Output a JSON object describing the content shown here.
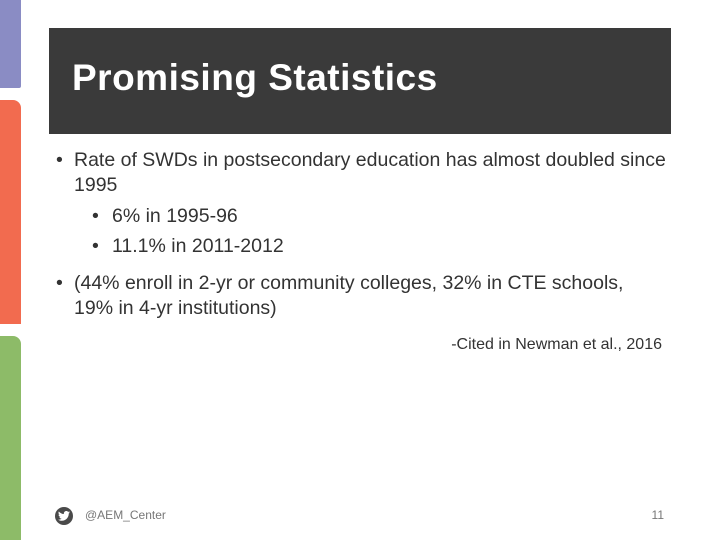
{
  "slide": {
    "title": "Promising Statistics",
    "bullets": [
      {
        "text": "Rate of SWDs in postsecondary education has almost doubled since 1995",
        "sub": [
          "6% in 1995-96",
          "11.1% in 2011-2012"
        ]
      },
      {
        "text": "(44% enroll in 2-yr or community colleges, 32% in CTE schools, 19% in 4-yr institutions)"
      }
    ],
    "citation": "-Cited in Newman et al., 2016"
  },
  "footer": {
    "handle": "@AEM_Center",
    "icon": "twitter-bird-icon",
    "page_number": "11"
  },
  "colors": {
    "title_bar": "#3a3a3a",
    "stripe_purple": "#8a8cc4",
    "stripe_orange": "#f26b4f",
    "stripe_green": "#8dbb68"
  }
}
